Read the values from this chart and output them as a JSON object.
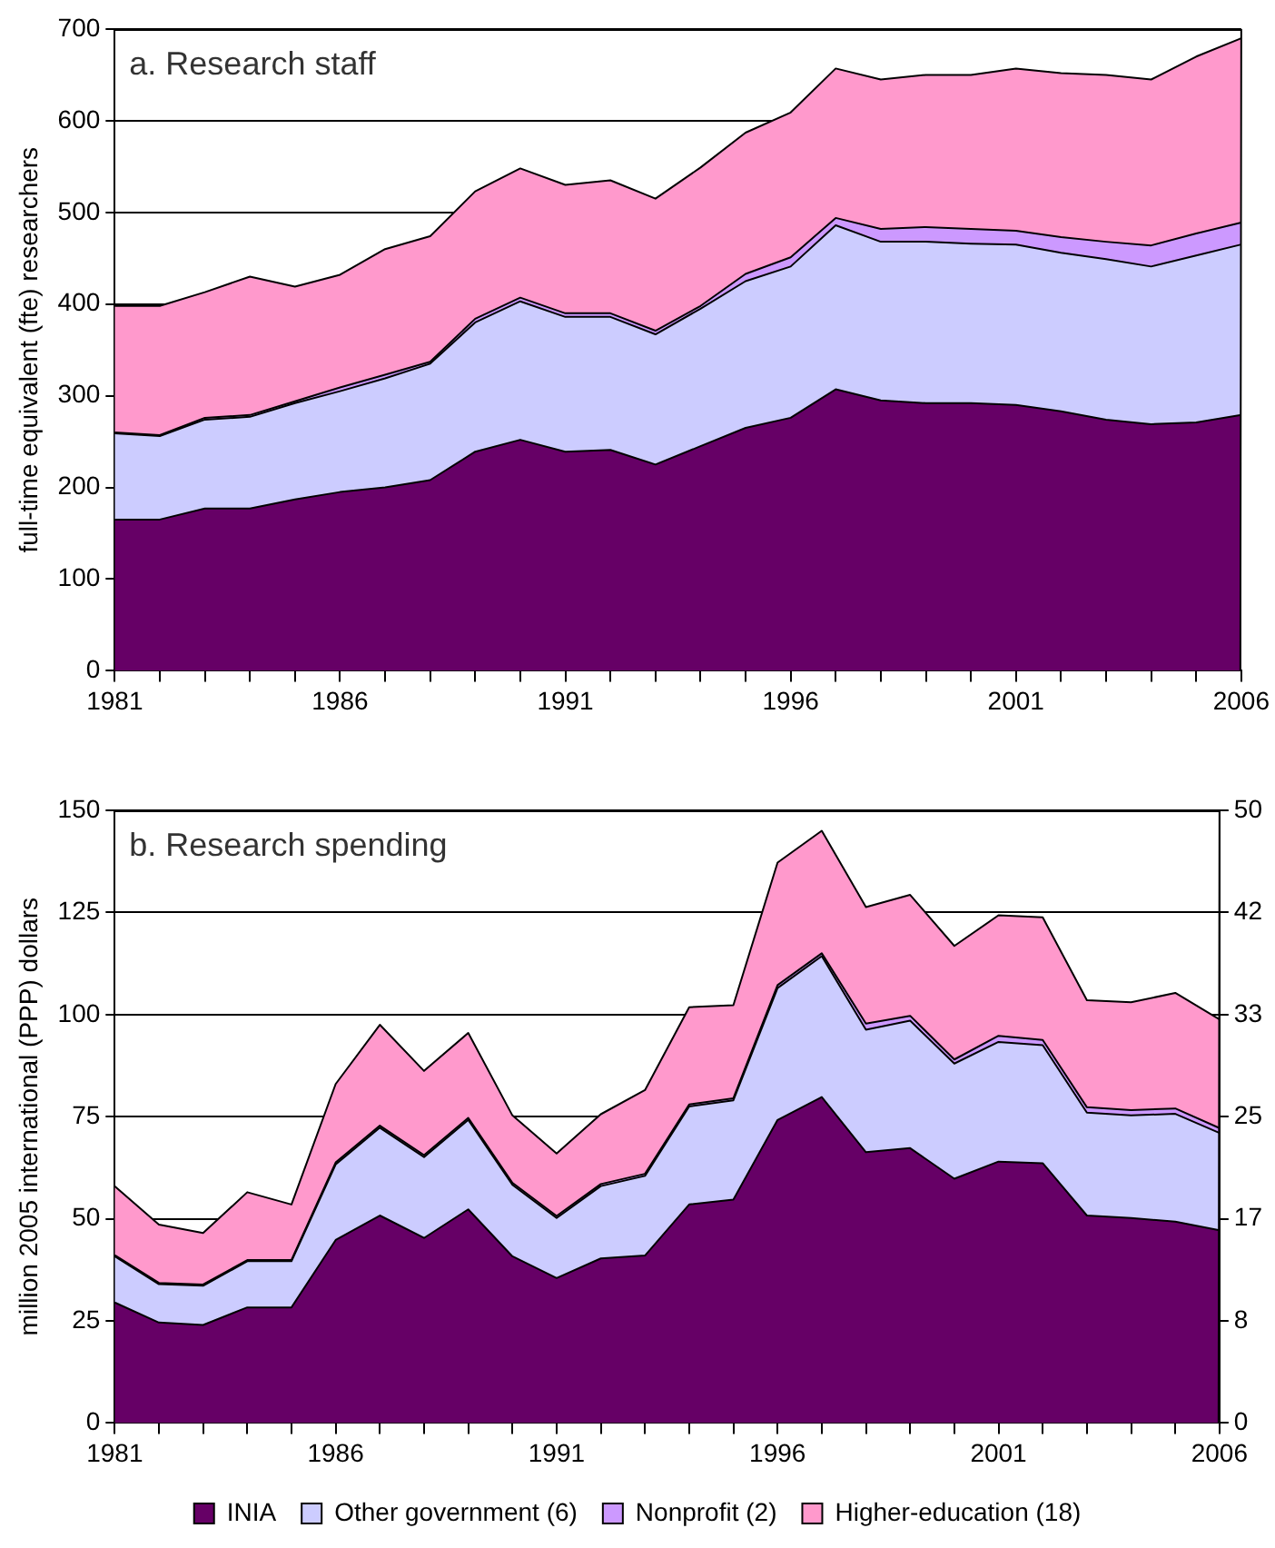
{
  "chart_data": [
    {
      "type": "area",
      "title": "a. Research staff",
      "ylabel": "full-time equivalent (fte) researchers",
      "stacked": true,
      "grid": "y",
      "legend": false,
      "categories": [
        "1981",
        null,
        null,
        null,
        null,
        "1986",
        null,
        null,
        null,
        null,
        "1991",
        null,
        null,
        null,
        null,
        "1996",
        null,
        null,
        null,
        null,
        "2001",
        null,
        null,
        null,
        null,
        "2006"
      ],
      "ylim": [
        0,
        700
      ],
      "yticks": [
        0,
        100,
        200,
        300,
        400,
        500,
        600,
        700
      ],
      "series": [
        {
          "color": "#660066",
          "values": [
            165,
            165,
            177,
            177,
            187,
            195,
            200,
            208,
            239,
            252,
            239,
            241,
            225,
            245,
            265,
            276,
            307,
            295,
            292,
            292,
            290,
            283,
            274,
            269,
            271,
            279
          ]
        },
        {
          "color": "#ccccff",
          "values": [
            94,
            91,
            97,
            100,
            105,
            110,
            119,
            127,
            141,
            151,
            147,
            145,
            142,
            150,
            160,
            165,
            179,
            173,
            176,
            174,
            175,
            173,
            175,
            172,
            182,
            186
          ]
        },
        {
          "color": "#cc99ff",
          "values": [
            1,
            1,
            2,
            2,
            2,
            4,
            4,
            2,
            4,
            4,
            4,
            4,
            4,
            3,
            8,
            10,
            8,
            14,
            16,
            16,
            15,
            17,
            19,
            23,
            24,
            24
          ]
        },
        {
          "color": "#ff99cc",
          "values": [
            138,
            141,
            137,
            151,
            125,
            123,
            137,
            137,
            139,
            141,
            140,
            145,
            144,
            151,
            154,
            158,
            163,
            163,
            166,
            168,
            177,
            179,
            182,
            181,
            193,
            201
          ]
        }
      ]
    },
    {
      "type": "area",
      "title": "b. Research spending",
      "ylabel": "million 2005 international (PPP) dollars",
      "stacked": true,
      "grid": "y",
      "legend": "bottom",
      "categories": [
        "1981",
        null,
        null,
        null,
        null,
        "1986",
        null,
        null,
        null,
        null,
        "1991",
        null,
        null,
        null,
        null,
        "1996",
        null,
        null,
        null,
        null,
        "2001",
        null,
        null,
        null,
        null,
        "2006"
      ],
      "ylim": [
        0,
        150
      ],
      "yticks": [
        0,
        25,
        50,
        75,
        100,
        125,
        150
      ],
      "y2lim": [
        0,
        50
      ],
      "y2ticks": [
        0,
        {
          "value": 8.333,
          "label": "8"
        },
        {
          "value": 16.667,
          "label": "17"
        },
        25,
        {
          "value": 33.333,
          "label": "33"
        },
        {
          "value": 41.667,
          "label": "42"
        },
        50
      ],
      "series": [
        {
          "name": "INIA",
          "color": "#660066",
          "values": [
            29.5,
            24.6,
            24,
            28.3,
            28.3,
            44.8,
            50.8,
            45.3,
            52.3,
            40.8,
            35.5,
            40.3,
            41,
            53.5,
            54.7,
            74.2,
            79.8,
            66.3,
            67.3,
            59.8,
            64,
            63.6,
            50.8,
            50.2,
            49.3,
            47.2
          ]
        },
        {
          "name": "Other government (6)",
          "color": "#ccccff",
          "values": [
            11.3,
            9.4,
            9.6,
            11.3,
            11.3,
            18.5,
            21.5,
            19.8,
            21.9,
            17.5,
            14.7,
            17.7,
            19.5,
            24,
            24.3,
            32.3,
            34.5,
            30,
            31.2,
            28.2,
            29.3,
            28.9,
            25.2,
            25.1,
            26.4,
            23.8
          ]
        },
        {
          "name": "Nonprofit (2)",
          "color": "#cc99ff",
          "values": [
            0.3,
            0.3,
            0.3,
            0.3,
            0.3,
            0.5,
            0.5,
            0.5,
            0.5,
            0.5,
            0.5,
            0.5,
            0.5,
            0.5,
            0.5,
            0.7,
            0.7,
            1.5,
            1.2,
            1,
            1.5,
            1.3,
            1.3,
            1.3,
            1.3,
            1.2
          ]
        },
        {
          "name": "Higher-education (18)",
          "color": "#ff99cc",
          "values": [
            16.9,
            14.3,
            12.6,
            16.6,
            13.6,
            19.2,
            24.7,
            20.6,
            20.8,
            16.5,
            15.3,
            17.1,
            20.5,
            23.8,
            22.8,
            30,
            30,
            28.5,
            29.6,
            27.8,
            29.5,
            30,
            26.2,
            26.4,
            28.3,
            26.6
          ]
        }
      ]
    }
  ]
}
